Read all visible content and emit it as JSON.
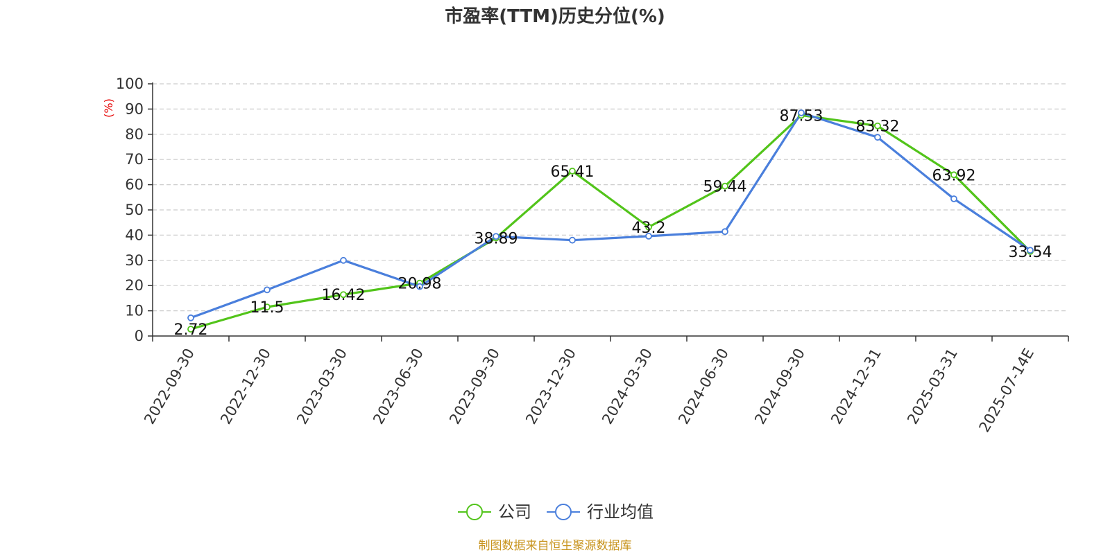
{
  "chart_data": {
    "type": "line",
    "title": "市盈率(TTM)历史分位(%)",
    "ylabel": "(%)",
    "ylim": [
      0,
      100
    ],
    "yticks": [
      0,
      10,
      20,
      30,
      40,
      50,
      60,
      70,
      80,
      90,
      100
    ],
    "grid": true,
    "legend_position": "bottom-center",
    "categories": [
      "2022-09-30",
      "2022-12-30",
      "2023-03-30",
      "2023-06-30",
      "2023-09-30",
      "2023-12-30",
      "2024-03-30",
      "2024-06-30",
      "2024-09-30",
      "2024-12-31",
      "2025-03-31",
      "2025-07-14E"
    ],
    "series": [
      {
        "name": "公司",
        "color": "#52c41a",
        "values": [
          2.72,
          11.5,
          16.42,
          20.98,
          38.89,
          65.41,
          43.2,
          59.44,
          87.53,
          83.32,
          63.92,
          33.54
        ],
        "labels": [
          "2.72",
          "11.5",
          "16.42",
          "20.98",
          "38.89",
          "65.41",
          "43.2",
          "59.44",
          "87.53",
          "83.32",
          "63.92",
          "33.54"
        ]
      },
      {
        "name": "行业均值",
        "color": "#4a7fdc",
        "values": [
          7.2,
          18.3,
          30.0,
          19.6,
          39.5,
          38.0,
          39.6,
          41.4,
          88.5,
          78.8,
          54.4,
          34.0
        ]
      }
    ],
    "source": "制图数据来自恒生聚源数据库"
  }
}
